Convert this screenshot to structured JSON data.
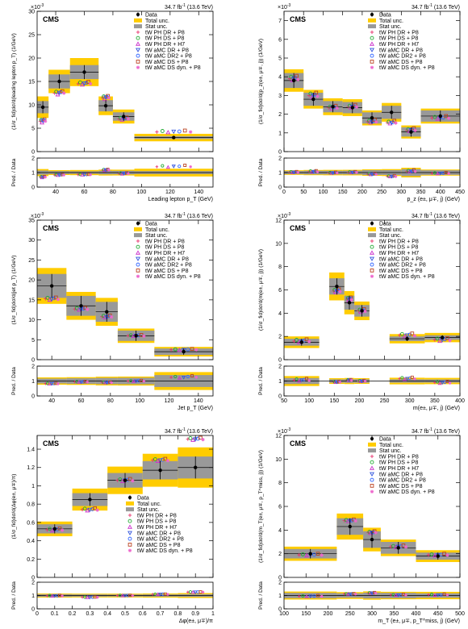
{
  "legend_labels": {
    "data": "Data",
    "total": "Total unc.",
    "stat": "Stat unc.",
    "m1": "tW PH DR + P8",
    "m2": "tW PH DS + P8",
    "m3": "tW PH DR + H7",
    "m4": "tW aMC DR + P8",
    "m5": "tW aMC DR2 + P8",
    "m6": "tW aMC DS + P8",
    "m7": "tW aMC DS dyn. + P8"
  },
  "colors": {
    "total": "#ffcc00",
    "stat": "#999999",
    "m1": "#e8336e",
    "m2": "#22aa33",
    "m3": "#cc33cc",
    "m4": "#3355dd",
    "m5": "#3366ff",
    "m6": "#bb4422",
    "m7": "#ee66cc"
  },
  "chart_data": [
    {
      "type": "histogram",
      "panel_id": "p1",
      "cms": "CMS",
      "lumi": "34.7 fb",
      "lumi_sup": "-1",
      "lumi_tail": " (13.6 TeV)",
      "multiplier": "×10",
      "multiplier_exp": "-3",
      "ylabel": "(1/σ_fid)dσ/d(leading lepton p_T) (1/GeV)",
      "xlabel": "Leading lepton p_T (GeV)",
      "ratio_label": "Pred. / Data",
      "xlim": [
        27,
        150
      ],
      "ylim": [
        0,
        30
      ],
      "xticks": [
        40,
        60,
        80,
        100,
        120,
        140
      ],
      "yticks": [
        0,
        5,
        10,
        15,
        20,
        25,
        30
      ],
      "ratio_ylim": [
        0,
        2
      ],
      "ratio_yticks": [
        0,
        1,
        2
      ],
      "bins": [
        [
          27,
          35
        ],
        [
          35,
          50
        ],
        [
          50,
          70
        ],
        [
          70,
          80
        ],
        [
          80,
          95
        ],
        [
          95,
          150
        ]
      ],
      "data": [
        9.5,
        15.0,
        17.0,
        9.8,
        7.5,
        3.0
      ],
      "stat": [
        1.3,
        1.5,
        1.5,
        1.2,
        0.9,
        0.3
      ],
      "total": [
        2.3,
        2.5,
        3.0,
        2.0,
        1.5,
        0.8
      ],
      "predictions": [
        [
          6.5,
          12.5,
          14.5,
          11.5,
          7.0,
          4.2
        ],
        [
          6.8,
          12.8,
          14.8,
          11.8,
          7.2,
          4.4
        ],
        [
          6.2,
          12.2,
          14.3,
          11.2,
          6.8,
          4.1
        ],
        [
          6.6,
          12.6,
          14.6,
          11.6,
          7.1,
          4.3
        ],
        [
          6.7,
          12.7,
          14.7,
          11.7,
          7.1,
          4.3
        ],
        [
          6.9,
          12.9,
          14.9,
          11.9,
          7.3,
          4.5
        ],
        [
          6.5,
          12.5,
          14.5,
          11.5,
          7.0,
          4.2
        ]
      ],
      "legend_pos": "top-right",
      "legend_items": [
        "data",
        "total",
        "stat",
        "m1",
        "m2",
        "m3",
        "m4",
        "m5",
        "m6",
        "m7"
      ]
    },
    {
      "type": "histogram",
      "panel_id": "p2",
      "cms": "CMS",
      "lumi": "34.7 fb",
      "lumi_sup": "-1",
      "lumi_tail": " (13.6 TeV)",
      "multiplier": "×10",
      "multiplier_exp": "-3",
      "ylabel": "(1/σ_fid)dσ/d(p_z(e±, μ∓, j)) (1/GeV)",
      "xlabel": "p_z (e±, μ∓, j) (GeV)",
      "ratio_label": "Pred. / Data",
      "xlim": [
        0,
        450
      ],
      "ylim": [
        0,
        7.5
      ],
      "xticks": [
        0,
        50,
        100,
        150,
        200,
        250,
        300,
        350,
        400,
        450
      ],
      "yticks": [
        0,
        1,
        2,
        3,
        4,
        5,
        6,
        7
      ],
      "ratio_ylim": [
        0,
        2
      ],
      "ratio_yticks": [
        0,
        1,
        2
      ],
      "bins": [
        [
          0,
          50
        ],
        [
          50,
          100
        ],
        [
          100,
          150
        ],
        [
          150,
          200
        ],
        [
          200,
          250
        ],
        [
          250,
          300
        ],
        [
          300,
          350
        ],
        [
          350,
          450
        ]
      ],
      "data": [
        3.8,
        2.8,
        2.4,
        2.35,
        1.8,
        2.1,
        1.05,
        1.9
      ],
      "stat": [
        0.4,
        0.35,
        0.3,
        0.3,
        0.3,
        0.35,
        0.25,
        0.3
      ],
      "total": [
        0.6,
        0.5,
        0.45,
        0.45,
        0.4,
        0.5,
        0.35,
        0.4
      ],
      "predictions": [
        [
          3.9,
          3.0,
          2.35,
          2.4,
          1.6,
          1.55,
          1.15,
          1.8
        ],
        [
          4.0,
          3.1,
          2.4,
          2.45,
          1.65,
          1.6,
          1.2,
          1.85
        ],
        [
          3.8,
          2.9,
          2.3,
          2.35,
          1.55,
          1.5,
          1.1,
          1.75
        ],
        [
          3.9,
          3.0,
          2.35,
          2.4,
          1.6,
          1.55,
          1.15,
          1.8
        ],
        [
          3.95,
          3.05,
          2.38,
          2.42,
          1.62,
          1.57,
          1.17,
          1.82
        ],
        [
          4.05,
          3.15,
          2.45,
          2.5,
          1.7,
          1.65,
          1.25,
          1.9
        ],
        [
          3.85,
          2.95,
          2.32,
          2.38,
          1.58,
          1.53,
          1.13,
          1.78
        ]
      ],
      "legend_pos": "top-right",
      "legend_items": [
        "data",
        "total",
        "stat",
        "m1",
        "m2",
        "m3",
        "m4",
        "m5",
        "m6",
        "m7"
      ]
    },
    {
      "type": "histogram",
      "panel_id": "p3",
      "cms": "CMS",
      "lumi": "34.7 fb",
      "lumi_sup": "-1",
      "lumi_tail": " (13.6 TeV)",
      "multiplier": "×10",
      "multiplier_exp": "-3",
      "ylabel": "(1/σ_fid)dσ/d(jet p_T) (1/GeV)",
      "xlabel": "Jet p_T (GeV)",
      "ratio_label": "Pred. / Data",
      "xlim": [
        30,
        150
      ],
      "ylim": [
        0,
        35
      ],
      "xticks": [
        40,
        60,
        80,
        100,
        120,
        140
      ],
      "yticks": [
        0,
        5,
        10,
        15,
        20,
        25,
        30,
        35
      ],
      "ratio_ylim": [
        0,
        2
      ],
      "ratio_yticks": [
        0,
        1,
        2
      ],
      "bins": [
        [
          30,
          50
        ],
        [
          50,
          70
        ],
        [
          70,
          85
        ],
        [
          85,
          110
        ],
        [
          110,
          150
        ]
      ],
      "data": [
        18.5,
        13.5,
        12.0,
        6.0,
        2.0
      ],
      "stat": [
        3.0,
        2.5,
        2.5,
        1.3,
        0.8
      ],
      "total": [
        4.5,
        3.5,
        3.5,
        1.8,
        1.2
      ],
      "predictions": [
        [
          15.3,
          12.7,
          10.8,
          6.0,
          2.5
        ],
        [
          15.5,
          12.9,
          11.0,
          6.1,
          2.6
        ],
        [
          15.0,
          12.5,
          10.6,
          5.9,
          2.4
        ],
        [
          15.2,
          12.6,
          10.7,
          6.0,
          2.5
        ],
        [
          15.4,
          12.8,
          10.9,
          6.1,
          2.6
        ],
        [
          15.6,
          13.0,
          11.1,
          6.2,
          2.7
        ],
        [
          15.1,
          12.6,
          10.7,
          5.9,
          2.5
        ]
      ],
      "legend_pos": "top-right",
      "legend_items": [
        "data",
        "total",
        "stat",
        "m1",
        "m2",
        "m3",
        "m4",
        "m5",
        "m6",
        "m7"
      ]
    },
    {
      "type": "histogram",
      "panel_id": "p4",
      "cms": "CMS",
      "lumi": "34.7 fb",
      "lumi_sup": "-1",
      "lumi_tail": " (13.6 TeV)",
      "multiplier": "×10",
      "multiplier_exp": "-3",
      "ylabel": "(1/σ_fid)dσ/d(m(e±, μ∓, j)) (1/GeV)",
      "xlabel": "m(e±, μ∓, j) (GeV)",
      "ratio_label": "Pred. / Data",
      "xlim": [
        50,
        400
      ],
      "ylim": [
        0,
        12
      ],
      "xticks": [
        50,
        100,
        150,
        200,
        250,
        300,
        350,
        400
      ],
      "yticks": [
        0,
        2,
        4,
        6,
        8,
        10,
        12
      ],
      "ratio_ylim": [
        0,
        2
      ],
      "ratio_yticks": [
        0,
        1,
        2
      ],
      "bins": [
        [
          50,
          120
        ],
        [
          140,
          170
        ],
        [
          170,
          190
        ],
        [
          190,
          220
        ],
        [
          260,
          330
        ],
        [
          330,
          400
        ]
      ],
      "data": [
        1.5,
        6.3,
        4.9,
        4.2,
        1.8,
        1.9
      ],
      "stat": [
        0.3,
        0.7,
        0.6,
        0.5,
        0.2,
        0.2
      ],
      "total": [
        0.5,
        1.2,
        1.0,
        0.8,
        0.4,
        0.4
      ],
      "predictions": [
        [
          1.6,
          5.9,
          5.2,
          4.2,
          2.1,
          1.7
        ],
        [
          1.7,
          6.0,
          5.3,
          4.3,
          2.2,
          1.8
        ],
        [
          1.5,
          5.8,
          5.1,
          4.1,
          2.0,
          1.6
        ],
        [
          1.6,
          5.9,
          5.2,
          4.2,
          2.1,
          1.7
        ],
        [
          1.65,
          5.95,
          5.25,
          4.25,
          2.15,
          1.75
        ],
        [
          1.75,
          6.05,
          5.35,
          4.35,
          2.25,
          1.85
        ],
        [
          1.55,
          5.85,
          5.15,
          4.15,
          2.05,
          1.65
        ]
      ],
      "legend_pos": "top-right",
      "legend_items": [
        "data",
        "total",
        "stat",
        "m1",
        "m2",
        "m3",
        "m4",
        "m5",
        "m6",
        "m7"
      ]
    },
    {
      "type": "histogram",
      "panel_id": "p5",
      "cms": "CMS",
      "lumi": "34.7 fb",
      "lumi_sup": "-1",
      "lumi_tail": " (13.6 TeV)",
      "multiplier": "",
      "multiplier_exp": "",
      "ylabel": "(1/σ_fid)dσ/d(Δφ(e±, μ∓)/π)",
      "xlabel": "Δφ(e±, μ∓)/π",
      "ratio_label": "Pred. / Data",
      "xlim": [
        0,
        1
      ],
      "ylim": [
        0,
        1.55
      ],
      "xticks": [
        0,
        0.1,
        0.2,
        0.3,
        0.4,
        0.5,
        0.6,
        0.7,
        0.8,
        0.9,
        1
      ],
      "yticks": [
        0,
        0.2,
        0.4,
        0.6,
        0.8,
        1,
        1.2,
        1.4
      ],
      "ratio_ylim": [
        0,
        2
      ],
      "ratio_yticks": [
        0,
        1,
        2
      ],
      "bins": [
        [
          0,
          0.2
        ],
        [
          0.2,
          0.4
        ],
        [
          0.4,
          0.6
        ],
        [
          0.6,
          0.8
        ],
        [
          0.8,
          1
        ]
      ],
      "data": [
        0.53,
        0.85,
        1.06,
        1.17,
        1.2
      ],
      "stat": [
        0.05,
        0.07,
        0.08,
        0.1,
        0.12
      ],
      "total": [
        0.08,
        0.12,
        0.15,
        0.18,
        0.22
      ],
      "predictions": [
        [
          0.52,
          0.74,
          1.06,
          1.28,
          1.51
        ],
        [
          0.53,
          0.75,
          1.07,
          1.29,
          1.52
        ],
        [
          0.51,
          0.73,
          1.05,
          1.27,
          1.5
        ],
        [
          0.52,
          0.74,
          1.06,
          1.28,
          1.51
        ],
        [
          0.525,
          0.745,
          1.065,
          1.285,
          1.515
        ],
        [
          0.535,
          0.755,
          1.075,
          1.295,
          1.525
        ],
        [
          0.515,
          0.735,
          1.055,
          1.275,
          1.505
        ]
      ],
      "legend_pos": "bottom-right",
      "legend_items": [
        "data",
        "total",
        "stat",
        "m1",
        "m2",
        "m3",
        "m4",
        "m5",
        "m6",
        "m7"
      ]
    },
    {
      "type": "histogram",
      "panel_id": "p6",
      "cms": "CMS",
      "lumi": "34.7 fb",
      "lumi_sup": "-1",
      "lumi_tail": " (13.6 TeV)",
      "multiplier": "×10",
      "multiplier_exp": "-3",
      "ylabel": "(1/σ_fid)dσ/d(m_T(e±, μ∓, p_T^miss, j)) (1/GeV)",
      "xlabel": "m_T (e±, μ∓, p_T^miss, j) (GeV)",
      "ratio_label": "Pred. / Data",
      "xlim": [
        100,
        500
      ],
      "ylim": [
        0,
        12
      ],
      "xticks": [
        100,
        150,
        200,
        250,
        300,
        350,
        400,
        450,
        500
      ],
      "yticks": [
        0,
        2,
        4,
        6,
        8,
        10,
        12
      ],
      "ratio_ylim": [
        0,
        2
      ],
      "ratio_yticks": [
        0,
        1,
        2
      ],
      "bins": [
        [
          100,
          220
        ],
        [
          220,
          280
        ],
        [
          280,
          320
        ],
        [
          320,
          400
        ],
        [
          400,
          500
        ]
      ],
      "data": [
        2.0,
        4.3,
        3.2,
        2.5,
        1.8
      ],
      "stat": [
        0.4,
        0.7,
        0.7,
        0.5,
        0.3
      ],
      "total": [
        0.6,
        1.1,
        1.0,
        0.7,
        0.5
      ],
      "predictions": [
        [
          1.9,
          4.8,
          3.8,
          2.6,
          1.9
        ],
        [
          1.95,
          4.85,
          3.85,
          2.65,
          1.95
        ],
        [
          1.85,
          4.75,
          3.75,
          2.55,
          1.85
        ],
        [
          1.9,
          4.8,
          3.8,
          2.6,
          1.9
        ],
        [
          1.92,
          4.82,
          3.82,
          2.62,
          1.92
        ],
        [
          2.0,
          4.9,
          3.9,
          2.7,
          2.0
        ],
        [
          1.88,
          4.78,
          3.78,
          2.58,
          1.88
        ]
      ],
      "legend_pos": "top-right",
      "legend_items": [
        "data",
        "total",
        "stat",
        "m1",
        "m2",
        "m3",
        "m4",
        "m5",
        "m6",
        "m7"
      ]
    }
  ]
}
